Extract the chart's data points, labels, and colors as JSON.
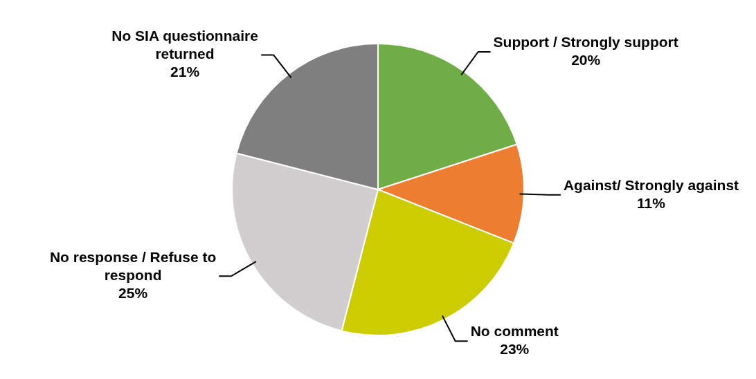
{
  "chart_data": {
    "type": "pie",
    "categories": [
      "Support / Strongly support",
      "Against/ Strongly against",
      "No comment",
      "No response / Refuse to respond",
      "No SIA questionnaire returned"
    ],
    "values": [
      20,
      11,
      23,
      25,
      21
    ],
    "colors": [
      "#70ad47",
      "#ed7d31",
      "#cccc00",
      "#d0cece",
      "#7f7f7f"
    ],
    "value_labels": [
      "20%",
      "11%",
      "23%",
      "25%",
      "21%"
    ],
    "legend": false
  }
}
